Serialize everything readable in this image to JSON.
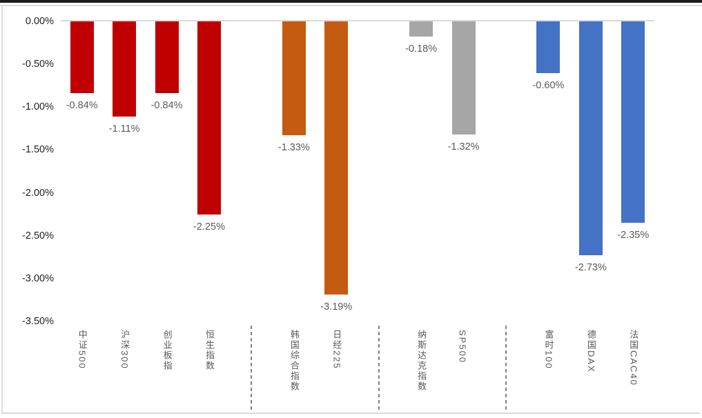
{
  "chart_data": {
    "type": "bar",
    "title": "",
    "xlabel": "",
    "ylabel": "",
    "value_format": "percent",
    "ylim": [
      -3.5,
      0
    ],
    "y_tick_step": 0.5,
    "y_tick_labels": [
      "0.00%",
      "-0.50%",
      "-1.00%",
      "-1.50%",
      "-2.00%",
      "-2.50%",
      "-3.00%",
      "-3.50%"
    ],
    "grid": "zero-line-only",
    "legend": "none",
    "bars": [
      {
        "category": "中证500",
        "value": -0.84,
        "label": "-0.84%",
        "slot": 0,
        "color": "#C00000"
      },
      {
        "category": "沪深300",
        "value": -1.11,
        "label": "-1.11%",
        "slot": 1,
        "color": "#C00000"
      },
      {
        "category": "创业板指",
        "value": -0.84,
        "label": "-0.84%",
        "slot": 2,
        "color": "#C00000"
      },
      {
        "category": "恒生指数",
        "value": -2.25,
        "label": "-2.25%",
        "slot": 3,
        "color": "#C00000"
      },
      {
        "category": "韩国综合指数",
        "value": -1.33,
        "label": "-1.33%",
        "slot": 5,
        "color": "#C55A11"
      },
      {
        "category": "日经225",
        "value": -3.19,
        "label": "-3.19%",
        "slot": 6,
        "color": "#C55A11"
      },
      {
        "category": "纳斯达克指数",
        "value": -0.18,
        "label": "-0.18%",
        "slot": 8,
        "color": "#A6A6A6"
      },
      {
        "category": "SP500",
        "value": -1.32,
        "label": "-1.32%",
        "slot": 9,
        "color": "#A6A6A6"
      },
      {
        "category": "富时100",
        "value": -0.6,
        "label": "-0.60%",
        "slot": 11,
        "color": "#4472C4"
      },
      {
        "category": "德国DAX",
        "value": -2.73,
        "label": "-2.73%",
        "slot": 12,
        "color": "#4472C4"
      },
      {
        "category": "法国CAC40",
        "value": -2.35,
        "label": "-2.35%",
        "slot": 13,
        "color": "#4472C4"
      }
    ],
    "separator_slots": [
      4,
      7,
      10
    ],
    "colors": {
      "china_red": "#C00000",
      "asia_orange": "#C55A11",
      "us_gray": "#A6A6A6",
      "europe_blue": "#4472C4",
      "axis_text": "#1F1F1F",
      "label_text": "#595959",
      "gridline": "#D9D9D9",
      "divider": "#808080"
    }
  }
}
